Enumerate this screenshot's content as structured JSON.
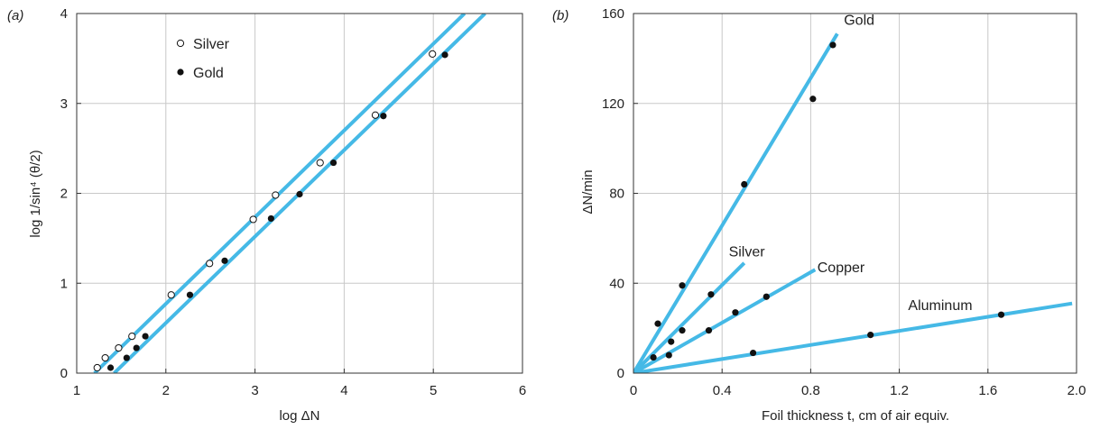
{
  "chart_data": [
    {
      "type": "scatter",
      "panel_label": "(a)",
      "xlabel": "log ΔN",
      "ylabel": "log 1/sin⁴ (θ/2)",
      "xlim": [
        1,
        6
      ],
      "ylim": [
        0,
        4
      ],
      "xticks": [
        "1",
        "2",
        "3",
        "4",
        "5",
        "6"
      ],
      "yticks": [
        "0",
        "1",
        "2",
        "3",
        "4"
      ],
      "grid": true,
      "legend_position": "top-left",
      "line_color": "#45b9e6",
      "series": [
        {
          "name": "Silver",
          "marker": "open-circle",
          "points": [
            [
              1.23,
              0.06
            ],
            [
              1.32,
              0.17
            ],
            [
              1.47,
              0.28
            ],
            [
              1.62,
              0.41
            ],
            [
              2.06,
              0.87
            ],
            [
              2.49,
              1.22
            ],
            [
              2.98,
              1.71
            ],
            [
              3.23,
              1.98
            ],
            [
              3.73,
              2.34
            ],
            [
              4.35,
              2.87
            ],
            [
              4.99,
              3.55
            ]
          ],
          "fit_line": [
            [
              1.2,
              0.0
            ],
            [
              5.35,
              4.0
            ]
          ]
        },
        {
          "name": "Gold",
          "marker": "filled-circle",
          "points": [
            [
              1.38,
              0.06
            ],
            [
              1.56,
              0.17
            ],
            [
              1.67,
              0.28
            ],
            [
              1.77,
              0.41
            ],
            [
              2.27,
              0.87
            ],
            [
              2.66,
              1.25
            ],
            [
              3.18,
              1.72
            ],
            [
              3.5,
              1.99
            ],
            [
              3.88,
              2.34
            ],
            [
              4.44,
              2.86
            ],
            [
              5.13,
              3.54
            ]
          ],
          "fit_line": [
            [
              1.42,
              0.0
            ],
            [
              5.58,
              4.0
            ]
          ]
        }
      ]
    },
    {
      "type": "scatter",
      "panel_label": "(b)",
      "xlabel": "Foil thickness t, cm of air equiv.",
      "ylabel": "ΔN/min",
      "xlim": [
        0,
        2.0
      ],
      "ylim": [
        0,
        160
      ],
      "xticks": [
        "0",
        "0.4",
        "0.8",
        "1.2",
        "1.6",
        "2.0"
      ],
      "yticks": [
        "0",
        "40",
        "80",
        "120",
        "160"
      ],
      "grid": true,
      "line_color": "#45b9e6",
      "series": [
        {
          "name": "Gold",
          "points": [
            [
              0.11,
              22
            ],
            [
              0.22,
              39
            ],
            [
              0.5,
              84
            ],
            [
              0.81,
              122
            ],
            [
              0.9,
              146
            ]
          ],
          "fit_line": [
            [
              0,
              0
            ],
            [
              0.92,
              151
            ]
          ],
          "label_at": [
            0.95,
            155
          ]
        },
        {
          "name": "Silver",
          "points": [
            [
              0.09,
              7
            ],
            [
              0.17,
              14
            ],
            [
              0.22,
              19
            ],
            [
              0.35,
              35
            ]
          ],
          "fit_line": [
            [
              0,
              0
            ],
            [
              0.5,
              49
            ]
          ],
          "label_at": [
            0.43,
            52
          ]
        },
        {
          "name": "Copper",
          "points": [
            [
              0.16,
              8
            ],
            [
              0.34,
              19
            ],
            [
              0.46,
              27
            ],
            [
              0.6,
              34
            ]
          ],
          "fit_line": [
            [
              0,
              0
            ],
            [
              0.82,
              46
            ]
          ],
          "label_at": [
            0.83,
            45
          ]
        },
        {
          "name": "Aluminum",
          "points": [
            [
              0.54,
              9
            ],
            [
              1.07,
              17
            ],
            [
              1.66,
              26
            ]
          ],
          "fit_line": [
            [
              0,
              0
            ],
            [
              1.98,
              31
            ]
          ],
          "label_at": [
            1.24,
            28
          ]
        }
      ]
    }
  ]
}
